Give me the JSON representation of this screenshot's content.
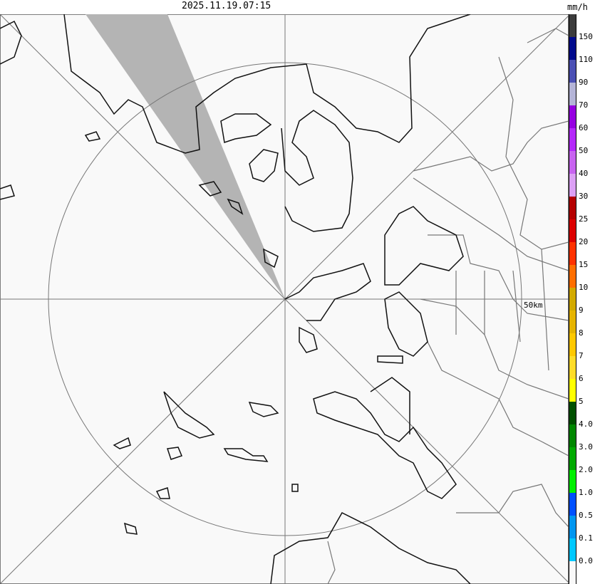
{
  "header": {
    "timestamp": "2025.11.19.07:15",
    "unit": "mm/h"
  },
  "map": {
    "range_label": "50km",
    "background": "#f9f9f9",
    "beam_blockage_color": "#b4b4b4"
  },
  "legend": {
    "colors": [
      "#3c3c3c",
      "#000a8c",
      "#4b50b4",
      "#b4b4d7",
      "#9600e1",
      "#b428fa",
      "#c864f0",
      "#dca0f5",
      "#b40000",
      "#dc0000",
      "#ff3200",
      "#ff6e00",
      "#d2aa00",
      "#e6b400",
      "#ffc800",
      "#ffdc28",
      "#ffff00",
      "#005000",
      "#008700",
      "#00aa00",
      "#00f000",
      "#0050ff",
      "#0096f0",
      "#00c8ff",
      "#f9f9f9"
    ],
    "labels": [
      "150",
      "110",
      "90",
      "70",
      "60",
      "50",
      "40",
      "30",
      "25",
      "20",
      "15",
      "10",
      "9",
      "8",
      "7",
      "6",
      "5",
      "4.0",
      "3.0",
      "2.0",
      "1.0",
      "0.5",
      "0.1",
      "0.0"
    ]
  }
}
